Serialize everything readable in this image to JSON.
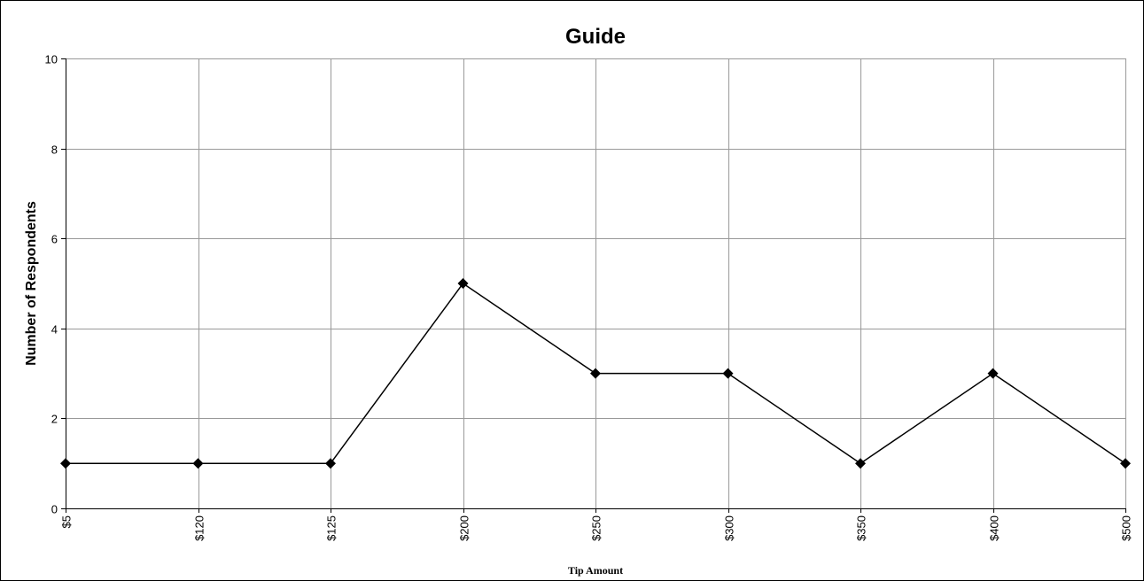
{
  "chart_data": {
    "type": "line",
    "title": "Guide",
    "xlabel": "Tip Amount",
    "ylabel": "Number of Respondents",
    "categories": [
      "$5",
      "$120",
      "$125",
      "$200",
      "$250",
      "$300",
      "$350",
      "$400",
      "$500"
    ],
    "series": [
      {
        "values": [
          1,
          1,
          1,
          5,
          3,
          3,
          1,
          3,
          1
        ]
      }
    ],
    "ylim": [
      0,
      10
    ],
    "yticks": [
      0,
      2,
      4,
      6,
      8,
      10
    ],
    "grid": true,
    "legend": "none",
    "marker": "diamond",
    "line_color": "#000000",
    "grid_color": "#999999"
  }
}
